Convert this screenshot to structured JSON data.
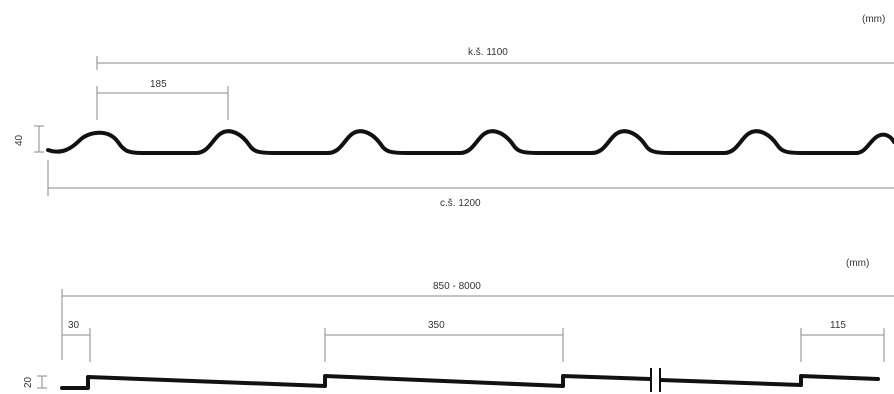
{
  "top_profile": {
    "unit": "(mm)",
    "overall_effective": "k.š. 1100",
    "overall_width": "c.š. 1200",
    "module": "185",
    "height": "40"
  },
  "bottom_profile": {
    "unit": "(mm)",
    "length_range": "850 - 8000",
    "start_offset": "30",
    "step": "350",
    "end_offset": "115",
    "step_height": "20"
  },
  "colors": {
    "profile": "#111111",
    "dimension": "#8a8a8a",
    "text": "#333333"
  }
}
